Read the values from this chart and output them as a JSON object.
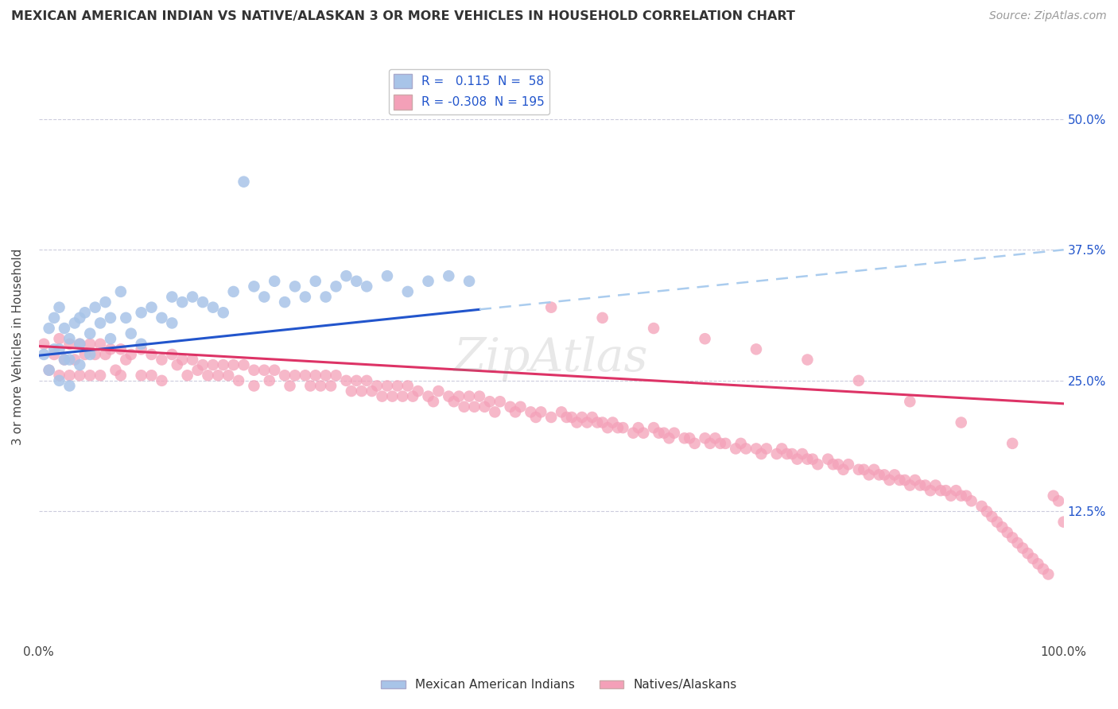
{
  "title": "MEXICAN AMERICAN INDIAN VS NATIVE/ALASKAN 3 OR MORE VEHICLES IN HOUSEHOLD CORRELATION CHART",
  "source": "Source: ZipAtlas.com",
  "ylabel": "3 or more Vehicles in Household",
  "blue_R": 0.115,
  "blue_N": 58,
  "pink_R": -0.308,
  "pink_N": 195,
  "blue_color": "#a8c4e8",
  "pink_color": "#f4a0b8",
  "blue_line_color": "#2255cc",
  "pink_line_color": "#dd3366",
  "blue_dash_color": "#aaccee",
  "blue_label": "Mexican American Indians",
  "pink_label": "Natives/Alaskans",
  "xlim": [
    0.0,
    1.0
  ],
  "ylim": [
    0.0,
    0.565
  ],
  "yticks": [
    0.125,
    0.25,
    0.375,
    0.5
  ],
  "ytick_labels": [
    "12.5%",
    "25.0%",
    "37.5%",
    "50.0%"
  ],
  "xtick_labels": [
    "0.0%",
    "100.0%"
  ],
  "background_color": "#ffffff",
  "grid_color": "#ccccdd",
  "blue_scatter_x": [
    0.005,
    0.01,
    0.01,
    0.015,
    0.015,
    0.02,
    0.02,
    0.02,
    0.025,
    0.025,
    0.03,
    0.03,
    0.03,
    0.035,
    0.04,
    0.04,
    0.04,
    0.045,
    0.05,
    0.05,
    0.055,
    0.06,
    0.065,
    0.07,
    0.07,
    0.08,
    0.085,
    0.09,
    0.1,
    0.1,
    0.11,
    0.12,
    0.13,
    0.13,
    0.14,
    0.15,
    0.16,
    0.17,
    0.18,
    0.19,
    0.2,
    0.21,
    0.22,
    0.23,
    0.24,
    0.25,
    0.26,
    0.27,
    0.28,
    0.29,
    0.3,
    0.31,
    0.32,
    0.34,
    0.36,
    0.38,
    0.4,
    0.42
  ],
  "blue_scatter_y": [
    0.275,
    0.3,
    0.26,
    0.31,
    0.28,
    0.32,
    0.28,
    0.25,
    0.3,
    0.27,
    0.29,
    0.27,
    0.245,
    0.305,
    0.31,
    0.285,
    0.265,
    0.315,
    0.295,
    0.275,
    0.32,
    0.305,
    0.325,
    0.31,
    0.29,
    0.335,
    0.31,
    0.295,
    0.315,
    0.285,
    0.32,
    0.31,
    0.33,
    0.305,
    0.325,
    0.33,
    0.325,
    0.32,
    0.315,
    0.335,
    0.44,
    0.34,
    0.33,
    0.345,
    0.325,
    0.34,
    0.33,
    0.345,
    0.33,
    0.34,
    0.35,
    0.345,
    0.34,
    0.35,
    0.335,
    0.345,
    0.35,
    0.345
  ],
  "pink_scatter_x": [
    0.005,
    0.01,
    0.015,
    0.02,
    0.02,
    0.025,
    0.03,
    0.03,
    0.035,
    0.04,
    0.04,
    0.045,
    0.05,
    0.05,
    0.055,
    0.06,
    0.06,
    0.065,
    0.07,
    0.075,
    0.08,
    0.08,
    0.085,
    0.09,
    0.1,
    0.1,
    0.11,
    0.11,
    0.12,
    0.12,
    0.13,
    0.135,
    0.14,
    0.145,
    0.15,
    0.155,
    0.16,
    0.165,
    0.17,
    0.175,
    0.18,
    0.185,
    0.19,
    0.195,
    0.2,
    0.21,
    0.21,
    0.22,
    0.225,
    0.23,
    0.24,
    0.245,
    0.25,
    0.26,
    0.265,
    0.27,
    0.275,
    0.28,
    0.285,
    0.29,
    0.3,
    0.305,
    0.31,
    0.315,
    0.32,
    0.325,
    0.33,
    0.335,
    0.34,
    0.345,
    0.35,
    0.355,
    0.36,
    0.365,
    0.37,
    0.38,
    0.385,
    0.39,
    0.4,
    0.405,
    0.41,
    0.415,
    0.42,
    0.425,
    0.43,
    0.435,
    0.44,
    0.445,
    0.45,
    0.46,
    0.465,
    0.47,
    0.48,
    0.485,
    0.49,
    0.5,
    0.51,
    0.515,
    0.52,
    0.525,
    0.53,
    0.535,
    0.54,
    0.545,
    0.55,
    0.555,
    0.56,
    0.565,
    0.57,
    0.58,
    0.585,
    0.59,
    0.6,
    0.605,
    0.61,
    0.615,
    0.62,
    0.63,
    0.635,
    0.64,
    0.65,
    0.655,
    0.66,
    0.665,
    0.67,
    0.68,
    0.685,
    0.69,
    0.7,
    0.705,
    0.71,
    0.72,
    0.725,
    0.73,
    0.735,
    0.74,
    0.745,
    0.75,
    0.755,
    0.76,
    0.77,
    0.775,
    0.78,
    0.785,
    0.79,
    0.8,
    0.805,
    0.81,
    0.815,
    0.82,
    0.825,
    0.83,
    0.835,
    0.84,
    0.845,
    0.85,
    0.855,
    0.86,
    0.865,
    0.87,
    0.875,
    0.88,
    0.885,
    0.89,
    0.895,
    0.9,
    0.905,
    0.91,
    0.92,
    0.925,
    0.93,
    0.935,
    0.94,
    0.945,
    0.95,
    0.955,
    0.96,
    0.965,
    0.97,
    0.975,
    0.98,
    0.985,
    0.99,
    0.995,
    1.0,
    0.5,
    0.55,
    0.6,
    0.65,
    0.7,
    0.75,
    0.8,
    0.85,
    0.9,
    0.95
  ],
  "pink_scatter_y": [
    0.285,
    0.26,
    0.275,
    0.29,
    0.255,
    0.27,
    0.285,
    0.255,
    0.27,
    0.285,
    0.255,
    0.275,
    0.285,
    0.255,
    0.275,
    0.285,
    0.255,
    0.275,
    0.28,
    0.26,
    0.28,
    0.255,
    0.27,
    0.275,
    0.28,
    0.255,
    0.275,
    0.255,
    0.27,
    0.25,
    0.275,
    0.265,
    0.27,
    0.255,
    0.27,
    0.26,
    0.265,
    0.255,
    0.265,
    0.255,
    0.265,
    0.255,
    0.265,
    0.25,
    0.265,
    0.26,
    0.245,
    0.26,
    0.25,
    0.26,
    0.255,
    0.245,
    0.255,
    0.255,
    0.245,
    0.255,
    0.245,
    0.255,
    0.245,
    0.255,
    0.25,
    0.24,
    0.25,
    0.24,
    0.25,
    0.24,
    0.245,
    0.235,
    0.245,
    0.235,
    0.245,
    0.235,
    0.245,
    0.235,
    0.24,
    0.235,
    0.23,
    0.24,
    0.235,
    0.23,
    0.235,
    0.225,
    0.235,
    0.225,
    0.235,
    0.225,
    0.23,
    0.22,
    0.23,
    0.225,
    0.22,
    0.225,
    0.22,
    0.215,
    0.22,
    0.215,
    0.22,
    0.215,
    0.215,
    0.21,
    0.215,
    0.21,
    0.215,
    0.21,
    0.21,
    0.205,
    0.21,
    0.205,
    0.205,
    0.2,
    0.205,
    0.2,
    0.205,
    0.2,
    0.2,
    0.195,
    0.2,
    0.195,
    0.195,
    0.19,
    0.195,
    0.19,
    0.195,
    0.19,
    0.19,
    0.185,
    0.19,
    0.185,
    0.185,
    0.18,
    0.185,
    0.18,
    0.185,
    0.18,
    0.18,
    0.175,
    0.18,
    0.175,
    0.175,
    0.17,
    0.175,
    0.17,
    0.17,
    0.165,
    0.17,
    0.165,
    0.165,
    0.16,
    0.165,
    0.16,
    0.16,
    0.155,
    0.16,
    0.155,
    0.155,
    0.15,
    0.155,
    0.15,
    0.15,
    0.145,
    0.15,
    0.145,
    0.145,
    0.14,
    0.145,
    0.14,
    0.14,
    0.135,
    0.13,
    0.125,
    0.12,
    0.115,
    0.11,
    0.105,
    0.1,
    0.095,
    0.09,
    0.085,
    0.08,
    0.075,
    0.07,
    0.065,
    0.14,
    0.135,
    0.115,
    0.32,
    0.31,
    0.3,
    0.29,
    0.28,
    0.27,
    0.25,
    0.23,
    0.21,
    0.19
  ],
  "blue_trend_x0": 0.0,
  "blue_trend_x_solid_end": 0.43,
  "blue_trend_x1": 1.0,
  "blue_trend_y0": 0.274,
  "blue_trend_y_solid_end": 0.318,
  "blue_trend_y1": 0.375,
  "pink_trend_x0": 0.0,
  "pink_trend_x1": 1.0,
  "pink_trend_y0": 0.283,
  "pink_trend_y1": 0.228
}
